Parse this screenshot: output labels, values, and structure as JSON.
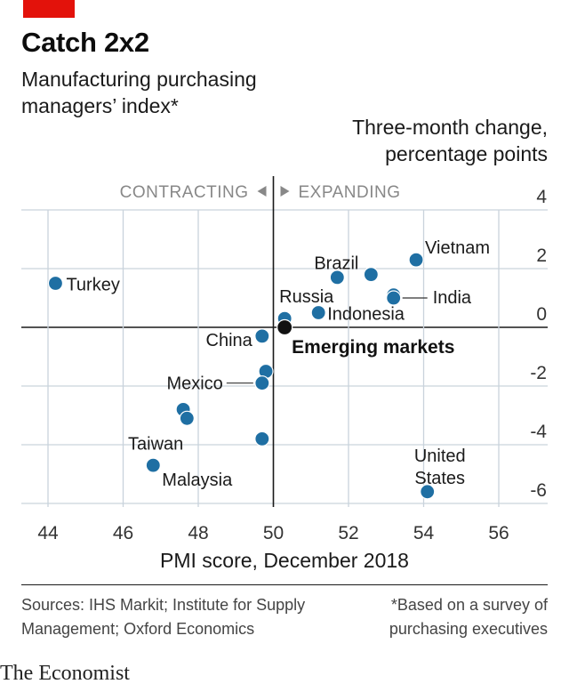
{
  "header": {
    "title": "Catch 2x2",
    "subtitle": "Manufacturing purchasing managers’ index*",
    "y_axis_title": "Three-month change, percentage points",
    "x_axis_title": "PMI score, December 2018"
  },
  "zones": {
    "contracting": "CONTRACTING",
    "expanding": "EXPANDING"
  },
  "footer": {
    "source": "Sources: IHS Markit; Institute for Supply Management; Oxford Economics",
    "footnote": "*Based on a survey of purchasing executives",
    "logo": "The Economist"
  },
  "colors": {
    "accent_red": "#e3120b",
    "dot": "#1f6fa3",
    "highlight_dot": "#111111",
    "grid": "#c9d3dc"
  },
  "chart_data": {
    "type": "scatter",
    "xlim": [
      44,
      57
    ],
    "ylim": [
      -6.3,
      4.3
    ],
    "x_ticks": [
      44,
      46,
      48,
      50,
      52,
      54,
      56
    ],
    "y_ticks": [
      4,
      2,
      0,
      -2,
      -4,
      -6
    ],
    "y_tick_labels": [
      "4",
      "2",
      "0",
      "-2",
      "-4",
      "-6"
    ],
    "grid": true,
    "divider_x": 50,
    "points": [
      {
        "label": "Turkey",
        "x": 44.2,
        "y": 1.5
      },
      {
        "label": "Vietnam",
        "x": 53.8,
        "y": 2.3
      },
      {
        "label": "Brazil",
        "x": 52.6,
        "y": 1.8
      },
      {
        "label": "Russia",
        "x": 51.7,
        "y": 1.7
      },
      {
        "label": "",
        "x": 53.2,
        "y": 1.1
      },
      {
        "label": "India",
        "x": 53.2,
        "y": 1.0
      },
      {
        "label": "Indonesia",
        "x": 51.2,
        "y": 0.5
      },
      {
        "label": "",
        "x": 50.3,
        "y": 0.3
      },
      {
        "label": "China",
        "x": 49.7,
        "y": -0.3
      },
      {
        "label": "",
        "x": 49.8,
        "y": -1.5
      },
      {
        "label": "Mexico",
        "x": 49.7,
        "y": -1.9
      },
      {
        "label": "",
        "x": 47.6,
        "y": -2.8
      },
      {
        "label": "Taiwan",
        "x": 47.7,
        "y": -3.1
      },
      {
        "label": "",
        "x": 49.7,
        "y": -3.8
      },
      {
        "label": "Malaysia",
        "x": 46.8,
        "y": -4.7
      },
      {
        "label": "United States",
        "x": 54.1,
        "y": -5.6
      }
    ],
    "highlight": {
      "label": "Emerging markets",
      "x": 50.3,
      "y": 0.0
    }
  }
}
